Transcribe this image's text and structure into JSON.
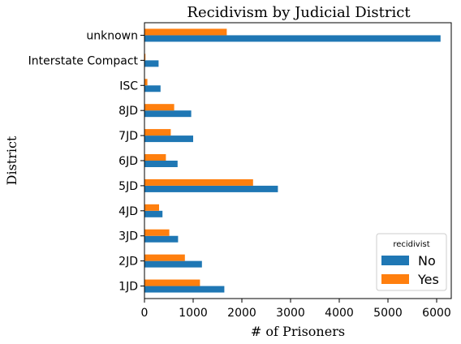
{
  "chart_data": {
    "type": "bar",
    "orientation": "horizontal",
    "title": "Recidivism by Judicial District",
    "xlabel": "# of Prisoners",
    "ylabel": "District",
    "categories": [
      "1JD",
      "2JD",
      "3JD",
      "4JD",
      "5JD",
      "6JD",
      "7JD",
      "8JD",
      "ISC",
      "Interstate Compact",
      "unknown"
    ],
    "series": [
      {
        "name": "No",
        "color": "#1f77b4",
        "values": [
          1640,
          1180,
          690,
          370,
          2740,
          680,
          1000,
          960,
          330,
          290,
          6080
        ]
      },
      {
        "name": "Yes",
        "color": "#ff7f0e",
        "values": [
          1140,
          830,
          510,
          300,
          2230,
          440,
          540,
          610,
          60,
          20,
          1690
        ]
      }
    ],
    "xlim": [
      0,
      6300
    ],
    "xticks": [
      0,
      1000,
      2000,
      3000,
      4000,
      5000,
      6000
    ],
    "grid": false,
    "legend": {
      "title": "recidivist",
      "placement": "lower-right"
    }
  }
}
